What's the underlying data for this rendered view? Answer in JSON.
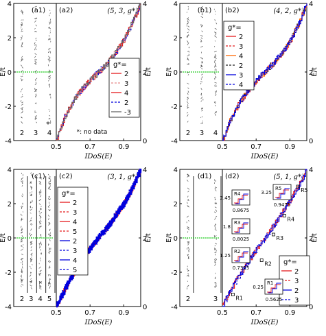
{
  "chart_data": [
    {
      "id": "a",
      "type": "line",
      "strip_label": "(a1)",
      "label": "(a2)",
      "param": "(5, 3, g*)",
      "strip_columns": [
        "2",
        "3",
        "4"
      ],
      "strip_star": "*",
      "note": "*: no data",
      "ylabel": "E/t",
      "xlabel": "IDoS(E)",
      "yticks_left": [
        "4",
        "2",
        "0",
        "-2",
        "-4"
      ],
      "yticks_right": [
        "4",
        "2",
        "0"
      ],
      "xticks": [
        "0.5",
        "0.7",
        "0.9"
      ],
      "xlim": [
        0.5,
        1.0
      ],
      "ylim": [
        -4,
        4
      ],
      "legend_title": "g*=",
      "legend_items": [
        "2",
        "3",
        "4",
        "2",
        "-3"
      ],
      "series_colors": [
        "#e41a1c",
        "#e88b8b",
        "#e41a1c",
        "#0000dd",
        "#666666"
      ],
      "curve": [
        [
          0.5,
          -4.0
        ],
        [
          0.55,
          -2.6
        ],
        [
          0.6,
          -1.7
        ],
        [
          0.65,
          -1.0
        ],
        [
          0.7,
          -0.5
        ],
        [
          0.75,
          0.0
        ],
        [
          0.8,
          0.5
        ],
        [
          0.85,
          1.1
        ],
        [
          0.9,
          1.9
        ],
        [
          0.95,
          2.9
        ],
        [
          1.0,
          4.0
        ]
      ]
    },
    {
      "id": "b",
      "type": "line",
      "strip_label": "(b1)",
      "label": "(b2)",
      "param": "(4, 2, g*)",
      "strip_columns": [
        "2",
        "3",
        "4"
      ],
      "ylabel": "E/t",
      "xlabel": "IDoS(E)",
      "yticks_left": [
        "4",
        "2",
        "0",
        "-2",
        "-4"
      ],
      "yticks_right": [
        "4",
        "2",
        "0"
      ],
      "xticks": [
        "0.5",
        "0.7",
        "0.9"
      ],
      "xlim": [
        0.5,
        1.0
      ],
      "ylim": [
        -4,
        4
      ],
      "legend_title": "g*=",
      "legend_items": [
        "2",
        "3",
        "4",
        "2",
        "3",
        "4"
      ],
      "series_colors": [
        "#e41a1c",
        "#e41a1c",
        "#ff6600",
        "#222222",
        "#0000dd",
        "#0000dd"
      ],
      "curve": [
        [
          0.5,
          -4.0
        ],
        [
          0.55,
          -2.7
        ],
        [
          0.6,
          -1.8
        ],
        [
          0.65,
          -1.1
        ],
        [
          0.7,
          -0.5
        ],
        [
          0.75,
          0.0
        ],
        [
          0.8,
          0.5
        ],
        [
          0.85,
          1.1
        ],
        [
          0.9,
          1.8
        ],
        [
          0.95,
          2.8
        ],
        [
          1.0,
          4.0
        ]
      ]
    },
    {
      "id": "c",
      "type": "line",
      "strip_label": "(c1)",
      "label": "(c2)",
      "param": "(3, 1, g*)",
      "strip_columns": [
        "2",
        "3",
        "4",
        "5"
      ],
      "ylabel": "E/t",
      "xlabel": "IDoS(E)",
      "yticks_left": [
        "4",
        "2",
        "0",
        "-2",
        "-4"
      ],
      "yticks_right": [
        "4",
        "2",
        "0"
      ],
      "xticks": [
        "0.5",
        "0.7",
        "0.9"
      ],
      "xlim": [
        0.5,
        1.0
      ],
      "ylim": [
        -4,
        4
      ],
      "legend_title": "g*=",
      "legend_items": [
        "2",
        "3",
        "4",
        "5",
        "2",
        "3",
        "4",
        "5"
      ],
      "series_colors": [
        "#e41a1c",
        "#e41a1c",
        "#e41a1c",
        "#e41a1c",
        "#0000dd",
        "#0000dd",
        "#0000dd",
        "#0000dd"
      ],
      "curve": [
        [
          0.5,
          -4.0
        ],
        [
          0.55,
          -3.0
        ],
        [
          0.6,
          -2.1
        ],
        [
          0.65,
          -1.3
        ],
        [
          0.7,
          -0.6
        ],
        [
          0.75,
          0.0
        ],
        [
          0.8,
          0.6
        ],
        [
          0.85,
          1.3
        ],
        [
          0.9,
          2.0
        ],
        [
          0.95,
          2.9
        ],
        [
          1.0,
          4.0
        ]
      ]
    },
    {
      "id": "d",
      "type": "line",
      "strip_label": "(d1)",
      "label": "(d2)",
      "param": "(5, 1, g*)",
      "strip_columns": [
        "2",
        "3"
      ],
      "ylabel": "E/t",
      "xlabel": "IDoS(E)",
      "yticks_left": [
        "4",
        "2",
        "0",
        "-2",
        "-4"
      ],
      "yticks_right": [
        "4",
        "2",
        "0"
      ],
      "xticks": [
        "0.5",
        "0.7",
        "0.9"
      ],
      "xlim": [
        0.5,
        1.0
      ],
      "ylim": [
        -4,
        4
      ],
      "legend_title": "g*=",
      "legend_items": [
        "2",
        "3",
        "2",
        "3"
      ],
      "series_colors": [
        "#e41a1c",
        "#e41a1c",
        "#0000dd",
        "#0000dd"
      ],
      "curve": [
        [
          0.5,
          -4.0
        ],
        [
          0.55,
          -3.0
        ],
        [
          0.6,
          -2.2
        ],
        [
          0.65,
          -1.4
        ],
        [
          0.7,
          -0.7
        ],
        [
          0.75,
          0.0
        ],
        [
          0.8,
          0.7
        ],
        [
          0.85,
          1.4
        ],
        [
          0.9,
          2.2
        ],
        [
          0.95,
          3.0
        ],
        [
          1.0,
          4.0
        ]
      ],
      "region_markers": [
        {
          "name": "R1",
          "x": 0.5625,
          "y": -3.3
        },
        {
          "name": "R2",
          "x": 0.7325,
          "y": -1.3
        },
        {
          "name": "R3",
          "x": 0.8025,
          "y": 0.2
        },
        {
          "name": "R4",
          "x": 0.8675,
          "y": 1.3
        },
        {
          "name": "R5",
          "x": 0.9475,
          "y": 3.0
        }
      ],
      "insets": [
        {
          "name": "R4",
          "xlabel": "0.8675",
          "ylabel": "2.45"
        },
        {
          "name": "R5",
          "xlabel": "0.9475",
          "ylabel": "3.25"
        },
        {
          "name": "R3",
          "xlabel": "0.8025",
          "ylabel": "1.8"
        },
        {
          "name": "R2",
          "xlabel": "0.7325",
          "ylabel": "1.25"
        },
        {
          "name": "R1",
          "xlabel": "0.5625",
          "ylabel": "0.25"
        }
      ]
    }
  ]
}
